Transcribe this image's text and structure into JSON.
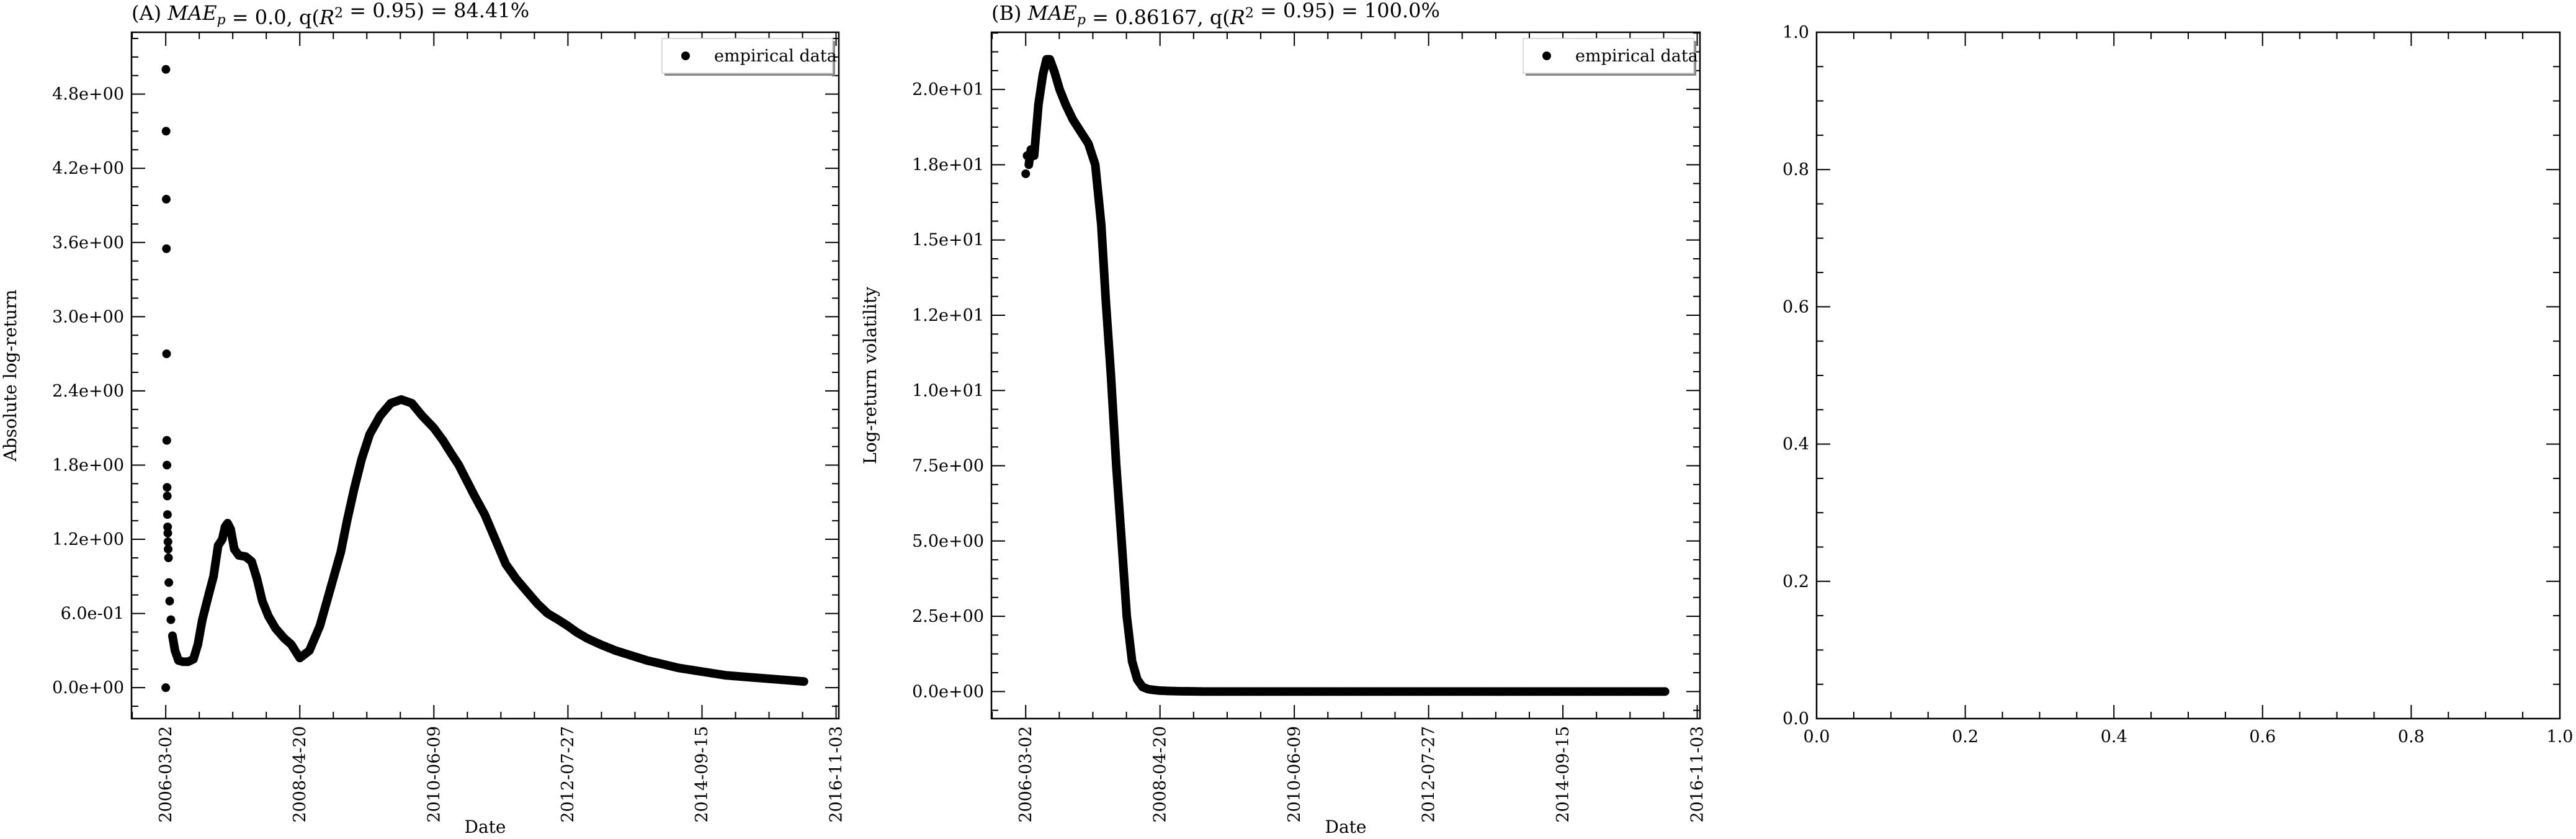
{
  "chart_data": [
    {
      "type": "scatter",
      "title": "(A) MAE_p = 0.0, q(R² = 0.95) = 84.41%",
      "xlabel": "Date",
      "ylabel": "Absolute log-return",
      "xlim": [
        "2005-08-15",
        "2016-11-20"
      ],
      "ylim": [
        -0.25,
        5.3
      ],
      "x_ticks": [
        "2006-03-02",
        "2008-04-20",
        "2010-06-09",
        "2012-07-27",
        "2014-09-15",
        "2016-11-03"
      ],
      "y_ticks": [
        0.0,
        0.6,
        1.2,
        1.8,
        2.4,
        3.0,
        3.6,
        4.2,
        4.8
      ],
      "y_tick_labels": [
        "0.0e+00",
        "6.0e-01",
        "1.2e+00",
        "1.8e+00",
        "2.4e+00",
        "3.0e+00",
        "3.6e+00",
        "4.2e+00",
        "4.8e+00"
      ],
      "legend": {
        "position": "top-right",
        "entries": [
          "empirical data"
        ]
      },
      "series": [
        {
          "name": "empirical data",
          "x": [
            "2006-03-02",
            "2006-03-03",
            "2006-03-04",
            "2006-03-05",
            "2006-03-06",
            "2006-03-07",
            "2006-03-08",
            "2006-03-09",
            "2006-03-10",
            "2006-03-11",
            "2006-03-12",
            "2006-03-13",
            "2006-03-14",
            "2006-03-15",
            "2006-03-16",
            "2006-03-18",
            "2006-03-20",
            "2006-03-25",
            "2006-04-01",
            "2006-04-10",
            "2006-04-25",
            "2006-05-15",
            "2006-06-10",
            "2006-07-10",
            "2006-08-10",
            "2006-09-05",
            "2006-10-01",
            "2006-11-01",
            "2006-12-05",
            "2007-01-01",
            "2007-01-25",
            "2007-02-10",
            "2007-02-25",
            "2007-03-15",
            "2007-04-05",
            "2007-05-01",
            "2007-06-10",
            "2007-07-15",
            "2007-08-15",
            "2007-09-15",
            "2007-10-20",
            "2007-12-01",
            "2008-01-20",
            "2008-03-01",
            "2008-04-20",
            "2008-06-15",
            "2008-08-15",
            "2008-10-15",
            "2008-12-15",
            "2009-01-20",
            "2009-03-01",
            "2009-04-15",
            "2009-06-01",
            "2009-08-01",
            "2009-10-01",
            "2009-12-01",
            "2010-02-01",
            "2010-04-01",
            "2010-06-09",
            "2010-08-01",
            "2010-09-15",
            "2010-11-01",
            "2010-12-15",
            "2011-02-01",
            "2011-04-01",
            "2011-06-01",
            "2011-08-01",
            "2011-10-01",
            "2011-12-01",
            "2012-02-01",
            "2012-04-01",
            "2012-06-01",
            "2012-07-27",
            "2012-09-15",
            "2012-11-15",
            "2013-02-01",
            "2013-05-01",
            "2013-08-01",
            "2013-11-01",
            "2014-02-01",
            "2014-05-01",
            "2014-08-01",
            "2014-11-01",
            "2015-02-01",
            "2015-05-01",
            "2015-08-01",
            "2015-11-01",
            "2016-02-01",
            "2016-05-01"
          ],
          "y": [
            0.0,
            5.0,
            4.5,
            3.95,
            3.55,
            2.7,
            2.0,
            1.8,
            1.62,
            1.55,
            1.4,
            1.3,
            1.25,
            1.18,
            1.12,
            1.05,
            0.85,
            0.7,
            0.55,
            0.42,
            0.3,
            0.22,
            0.21,
            0.21,
            0.23,
            0.35,
            0.55,
            0.72,
            0.9,
            1.15,
            1.2,
            1.3,
            1.33,
            1.28,
            1.12,
            1.07,
            1.06,
            1.02,
            0.88,
            0.7,
            0.58,
            0.48,
            0.4,
            0.35,
            0.24,
            0.3,
            0.5,
            0.8,
            1.1,
            1.35,
            1.6,
            1.85,
            2.05,
            2.2,
            2.3,
            2.33,
            2.3,
            2.2,
            2.1,
            2.0,
            1.9,
            1.8,
            1.68,
            1.55,
            1.4,
            1.2,
            1.0,
            0.88,
            0.78,
            0.68,
            0.6,
            0.55,
            0.5,
            0.45,
            0.4,
            0.35,
            0.3,
            0.26,
            0.22,
            0.19,
            0.16,
            0.14,
            0.12,
            0.1,
            0.09,
            0.08,
            0.07,
            0.06,
            0.05
          ]
        }
      ]
    },
    {
      "type": "scatter",
      "title": "(B) MAE_p = 0.86167, q(R² = 0.95) = 100.0%",
      "xlabel": "Date",
      "ylabel": "Log-return volatility",
      "xlim": [
        "2005-08-15",
        "2016-11-20"
      ],
      "ylim": [
        -0.9,
        21.9
      ],
      "x_ticks": [
        "2006-03-02",
        "2008-04-20",
        "2010-06-09",
        "2012-07-27",
        "2014-09-15",
        "2016-11-03"
      ],
      "y_ticks": [
        0.0,
        2.5,
        5.0,
        7.5,
        10.0,
        12.5,
        15.0,
        17.5,
        20.0
      ],
      "y_tick_labels": [
        "0.0e+00",
        "2.5e+00",
        "5.0e+00",
        "7.5e+00",
        "1.0e+01",
        "1.2e+01",
        "1.5e+01",
        "1.8e+01",
        "2.0e+01"
      ],
      "legend": {
        "position": "top-right",
        "entries": [
          "empirical data"
        ]
      },
      "series": [
        {
          "name": "empirical data",
          "x": [
            "2006-03-02",
            "2006-03-10",
            "2006-03-20",
            "2006-04-01",
            "2006-04-20",
            "2006-05-15",
            "2006-06-10",
            "2006-07-01",
            "2006-07-20",
            "2006-08-15",
            "2006-09-15",
            "2006-10-20",
            "2006-12-01",
            "2007-01-15",
            "2007-03-01",
            "2007-04-10",
            "2007-05-15",
            "2007-06-10",
            "2007-07-10",
            "2007-08-10",
            "2007-09-10",
            "2007-10-10",
            "2007-11-10",
            "2007-12-10",
            "2008-01-10",
            "2008-02-10",
            "2008-03-15",
            "2008-04-20",
            "2008-06-01",
            "2008-08-01",
            "2009-01-01",
            "2010-01-01",
            "2011-01-01",
            "2012-01-01",
            "2013-01-01",
            "2014-01-01",
            "2015-01-01",
            "2016-01-01",
            "2016-05-01"
          ],
          "y": [
            17.2,
            17.8,
            17.5,
            18.0,
            17.8,
            19.5,
            20.5,
            21.0,
            21.0,
            20.6,
            20.0,
            19.5,
            19.0,
            18.6,
            18.2,
            17.5,
            15.5,
            13.0,
            10.5,
            7.5,
            5.0,
            2.5,
            1.0,
            0.4,
            0.15,
            0.08,
            0.05,
            0.03,
            0.02,
            0.01,
            0.0,
            0.0,
            0.0,
            0.0,
            0.0,
            0.0,
            0.0,
            0.0,
            0.0
          ]
        }
      ]
    },
    {
      "type": "scatter",
      "xlim": [
        0.0,
        1.0
      ],
      "ylim": [
        0.0,
        1.0
      ],
      "x_ticks": [
        0.0,
        0.2,
        0.4,
        0.6,
        0.8,
        1.0
      ],
      "x_tick_labels": [
        "0.0",
        "0.2",
        "0.4",
        "0.6",
        "0.8",
        "1.0"
      ],
      "y_ticks": [
        0.0,
        0.2,
        0.4,
        0.6,
        0.8,
        1.0
      ],
      "y_tick_labels": [
        "0.0",
        "0.2",
        "0.4",
        "0.6",
        "0.8",
        "1.0"
      ],
      "series": []
    }
  ]
}
